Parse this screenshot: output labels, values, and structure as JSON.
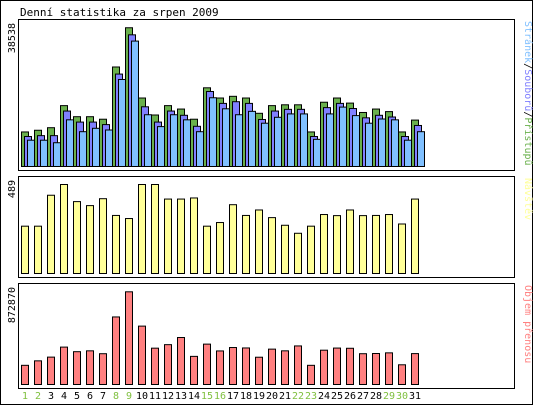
{
  "title": "Denní statistika za srpen 2009",
  "colors": {
    "frame": "#000000",
    "background": "#ffffff",
    "pristupy": "#6ab04c",
    "soubory": "#8080ff",
    "stranky": "#80c0ff",
    "navstevy": "#ffff99",
    "objem": "#ff8080",
    "weekend_label": "#80c040",
    "weekday_label": "#000000"
  },
  "chart_data": [
    {
      "type": "bar",
      "name": "hits",
      "peak_label": "38538",
      "legend": [
        {
          "text": "Stránek",
          "color": "#80c0ff"
        },
        {
          "text": "/",
          "color": "#000000"
        },
        {
          "text": "Souborů",
          "color": "#8080ff"
        },
        {
          "text": "/",
          "color": "#000000"
        },
        {
          "text": "Přístupů",
          "color": "#6ab04c"
        }
      ],
      "categories": [
        "1",
        "2",
        "3",
        "4",
        "5",
        "6",
        "7",
        "8",
        "9",
        "10",
        "11",
        "12",
        "13",
        "14",
        "15",
        "16",
        "17",
        "18",
        "19",
        "20",
        "21",
        "22",
        "23",
        "24",
        "25",
        "26",
        "27",
        "28",
        "29",
        "30",
        "31"
      ],
      "weekend_days": [
        "1",
        "2",
        "8",
        "9",
        "15",
        "16",
        "22",
        "23",
        "29",
        "30"
      ],
      "ylim": [
        0,
        38538
      ],
      "series": [
        {
          "name": "Přístupů",
          "values": [
            8470,
            8940,
            9650,
            15770,
            12700,
            12700,
            12000,
            26480,
            37360,
            17880,
            13170,
            15770,
            14820,
            12000,
            20710,
            17880,
            18350,
            17880,
            13640,
            15770,
            16000,
            16000,
            8470,
            16710,
            17880,
            16470,
            13870,
            14820,
            14110,
            8470,
            11760
          ]
        },
        {
          "name": "Souborů",
          "values": [
            7760,
            8000,
            8000,
            14820,
            11760,
            11760,
            11060,
            25070,
            35950,
            16000,
            11760,
            14820,
            13640,
            10590,
            20240,
            16940,
            17410,
            16940,
            12470,
            14820,
            15290,
            15290,
            7760,
            15770,
            16940,
            15520,
            12940,
            13640,
            13170,
            7760,
            10820
          ]
        },
        {
          "name": "Stránek",
          "values": [
            7290,
            7290,
            6590,
            12940,
            9650,
            10590,
            10120,
            24120,
            34770,
            14350,
            11060,
            14350,
            12940,
            9650,
            19060,
            16000,
            14350,
            15290,
            12000,
            13640,
            14580,
            14580,
            7530,
            14580,
            16470,
            14110,
            12000,
            13170,
            12940,
            7290,
            9650
          ]
        }
      ]
    },
    {
      "type": "bar",
      "name": "visits",
      "peak_label": "489",
      "legend": [
        {
          "text": "Návštěv",
          "color": "#ffff99"
        }
      ],
      "categories": [
        "1",
        "2",
        "3",
        "4",
        "5",
        "6",
        "7",
        "8",
        "9",
        "10",
        "11",
        "12",
        "13",
        "14",
        "15",
        "16",
        "17",
        "18",
        "19",
        "20",
        "21",
        "22",
        "23",
        "24",
        "25",
        "26",
        "27",
        "28",
        "29",
        "30",
        "31"
      ],
      "ylim": [
        0,
        489
      ],
      "series": [
        {
          "name": "Návštěv",
          "values": [
            260,
            260,
            430,
            489,
            395,
            373,
            411,
            319,
            302,
            489,
            489,
            409,
            409,
            415,
            260,
            280,
            378,
            319,
            349,
            307,
            265,
            221,
            260,
            324,
            318,
            349,
            318,
            319,
            324,
            272,
            409
          ]
        }
      ]
    },
    {
      "type": "bar",
      "name": "traffic",
      "peak_label": "872870",
      "legend": [
        {
          "text": "Objem přenosu",
          "color": "#ff8080"
        }
      ],
      "categories": [
        "1",
        "2",
        "3",
        "4",
        "5",
        "6",
        "7",
        "8",
        "9",
        "10",
        "11",
        "12",
        "13",
        "14",
        "15",
        "16",
        "17",
        "18",
        "19",
        "20",
        "21",
        "22",
        "23",
        "24",
        "25",
        "26",
        "27",
        "28",
        "29",
        "30",
        "31"
      ],
      "ylim": [
        0,
        872870
      ],
      "series": [
        {
          "name": "Objem přenosu",
          "values": [
            180000,
            222000,
            257000,
            351000,
            308000,
            316000,
            289000,
            634000,
            870000,
            548000,
            341000,
            374000,
            441000,
            264000,
            379000,
            315000,
            347000,
            343000,
            256000,
            332000,
            316000,
            362000,
            180000,
            322000,
            342000,
            340000,
            289000,
            291000,
            297000,
            185000,
            290000
          ]
        }
      ]
    }
  ]
}
